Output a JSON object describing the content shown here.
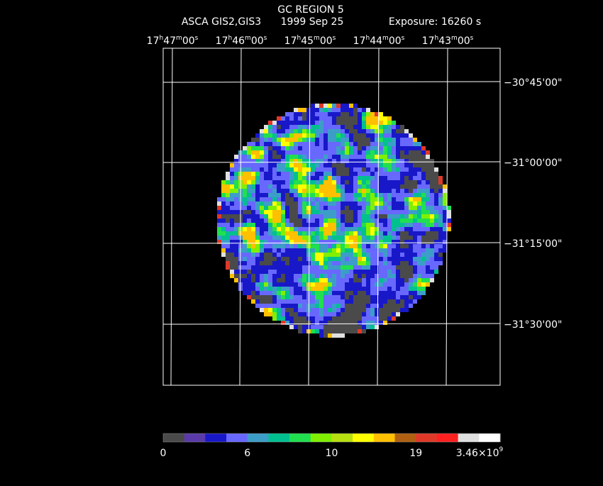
{
  "header": {
    "title": "GC REGION 5",
    "instrument": "ASCA GIS2,GIS3",
    "date": "1999 Sep 25",
    "exposure": "Exposure: 16260 s"
  },
  "ra_labels": [
    [
      "17",
      "h",
      "47",
      "m",
      "00",
      "s"
    ],
    [
      "17",
      "h",
      "46",
      "m",
      "00",
      "s"
    ],
    [
      "17",
      "h",
      "45",
      "m",
      "00",
      "s"
    ],
    [
      "17",
      "h",
      "44",
      "m",
      "00",
      "s"
    ],
    [
      "17",
      "h",
      "43",
      "m",
      "00",
      "s"
    ]
  ],
  "dec_labels": [
    "−30°45'00\"",
    "−31°00'00\"",
    "−31°15'00\"",
    "−31°30'00\""
  ],
  "colorbar": {
    "colors": [
      "#4a4a4a",
      "#5a3aa8",
      "#1818c8",
      "#6868ff",
      "#3c9ec8",
      "#00c090",
      "#20e050",
      "#80f000",
      "#b8e010",
      "#ffff00",
      "#ffc000",
      "#b06010",
      "#e03828",
      "#ff2020",
      "#e0e0e0",
      "#ffffff"
    ],
    "labels": [
      [
        "0"
      ],
      [
        "6"
      ],
      [
        "10"
      ],
      [
        "19"
      ],
      [
        "3.46×10",
        "9"
      ]
    ]
  }
}
